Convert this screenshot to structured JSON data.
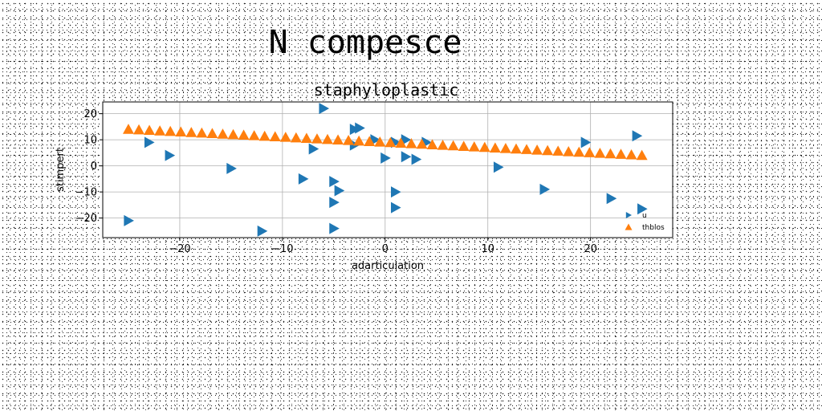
{
  "suptitle": "N compesce",
  "chart_data": {
    "type": "scatter",
    "title": "staphyloplastic",
    "xlabel": "adarticulation",
    "ylabel": "stimpert",
    "xlim": [
      -27.5,
      28
    ],
    "ylim": [
      -27.5,
      24.5
    ],
    "xticks": [
      -20,
      -10,
      0,
      10,
      20
    ],
    "yticks": [
      -20,
      -10,
      0,
      10,
      20
    ],
    "tick_labels_x": [
      "−20",
      "−10",
      "0",
      "10",
      "20"
    ],
    "tick_labels_y": [
      "−20",
      "−10",
      "0",
      "10",
      "20"
    ],
    "grid": true,
    "legend": {
      "placement": "lower-right"
    },
    "colors": {
      "u": "#1f77b4",
      "thblos": "#ff7f0e"
    },
    "series": [
      {
        "name": "u",
        "marker": "triangle-right",
        "color": "#1f77b4",
        "points": [
          [
            -6,
            22
          ],
          [
            -3,
            14
          ],
          [
            -2.5,
            14.5
          ],
          [
            -3,
            8
          ],
          [
            -1,
            10
          ],
          [
            1,
            9
          ],
          [
            2,
            10
          ],
          [
            4,
            9
          ],
          [
            2,
            3.5
          ],
          [
            3,
            2.5
          ],
          [
            0,
            3
          ],
          [
            -7,
            6.5
          ],
          [
            -23,
            9
          ],
          [
            -21,
            4
          ],
          [
            -15,
            -1
          ],
          [
            -8,
            -5
          ],
          [
            -5,
            -6
          ],
          [
            -4.5,
            -9.5
          ],
          [
            -5,
            -14
          ],
          [
            1,
            -10
          ],
          [
            1,
            -16
          ],
          [
            -25,
            -21
          ],
          [
            -12,
            -25
          ],
          [
            -5,
            -24
          ],
          [
            11,
            -0.5
          ],
          [
            15.5,
            -9
          ],
          [
            19.5,
            9
          ],
          [
            22,
            -12.5
          ],
          [
            24.5,
            11.5
          ],
          [
            25,
            -16.5
          ]
        ]
      },
      {
        "name": "thblos",
        "marker": "triangle-up",
        "color": "#ff7f0e",
        "x_start": -25,
        "x_end": 25,
        "count": 50,
        "y_start": 14,
        "y_end": 4
      }
    ]
  }
}
